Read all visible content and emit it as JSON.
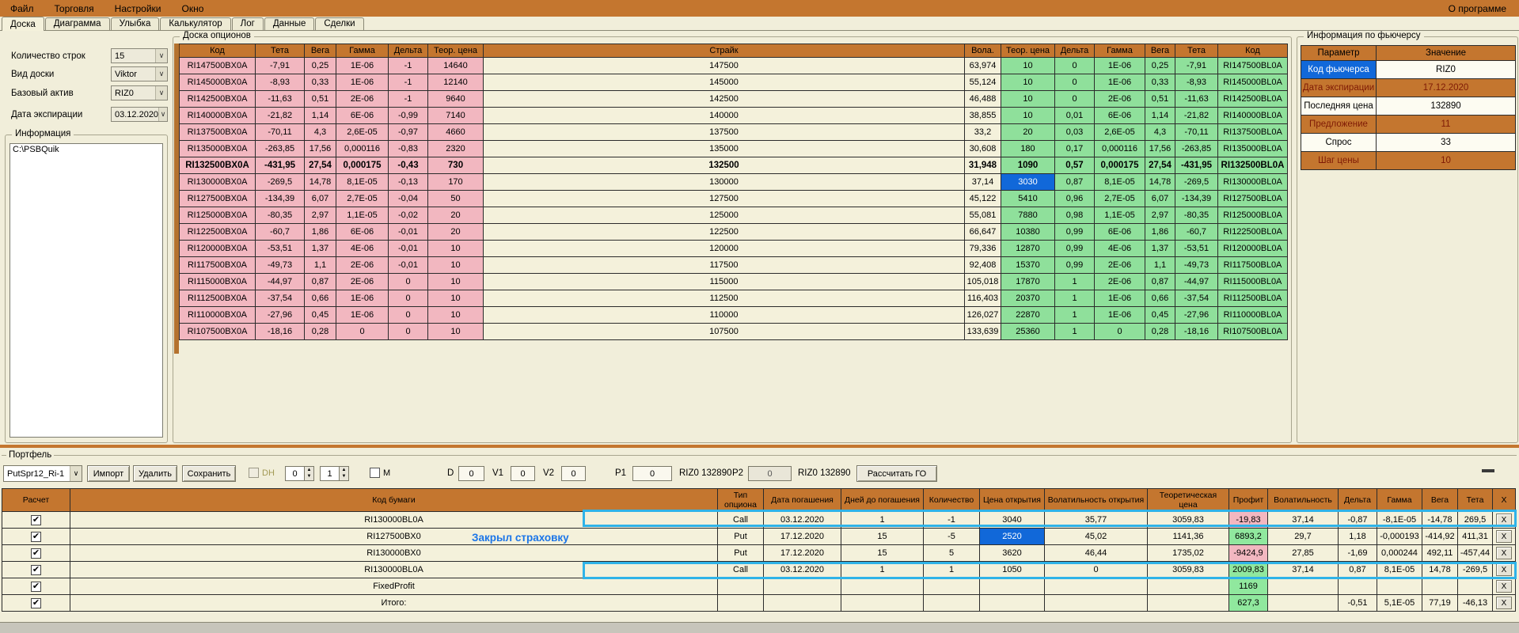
{
  "menu": {
    "items": [
      "Файл",
      "Торговля",
      "Настройки",
      "Окно"
    ],
    "right_item": "О программе"
  },
  "tabs": {
    "items": [
      "Доска",
      "Диаграмма",
      "Улыбка",
      "Калькулятор",
      "Лог",
      "Данные",
      "Сделки"
    ],
    "active": "Доска"
  },
  "left_panel": {
    "rows_count": {
      "label": "Количество строк",
      "value": "15"
    },
    "board_view": {
      "label": "Вид доски",
      "value": "Viktor"
    },
    "base_asset": {
      "label": "Базовый актив",
      "value": "RIZ0"
    },
    "expiry": {
      "label": "Дата экспирации",
      "value": "03.12.2020"
    },
    "info": {
      "label": "Информация",
      "value": "C:\\PSBQuik"
    }
  },
  "board": {
    "title": "Доска опционов",
    "headers": [
      "Код",
      "Тета",
      "Вега",
      "Гамма",
      "Дельта",
      "Теор. цена",
      "Страйк",
      "Вола.",
      "Теор. цена",
      "Дельта",
      "Гамма",
      "Вега",
      "Тета",
      "Код"
    ],
    "bold_row": 6,
    "selected_cell": {
      "row": 7,
      "col": 8
    },
    "rows": [
      [
        "RI147500BX0A",
        "-7,91",
        "0,25",
        "1E-06",
        "-1",
        "14640",
        "147500",
        "63,974",
        "10",
        "0",
        "1E-06",
        "0,25",
        "-7,91",
        "RI147500BL0A"
      ],
      [
        "RI145000BX0A",
        "-8,93",
        "0,33",
        "1E-06",
        "-1",
        "12140",
        "145000",
        "55,124",
        "10",
        "0",
        "1E-06",
        "0,33",
        "-8,93",
        "RI145000BL0A"
      ],
      [
        "RI142500BX0A",
        "-11,63",
        "0,51",
        "2E-06",
        "-1",
        "9640",
        "142500",
        "46,488",
        "10",
        "0",
        "2E-06",
        "0,51",
        "-11,63",
        "RI142500BL0A"
      ],
      [
        "RI140000BX0A",
        "-21,82",
        "1,14",
        "6E-06",
        "-0,99",
        "7140",
        "140000",
        "38,855",
        "10",
        "0,01",
        "6E-06",
        "1,14",
        "-21,82",
        "RI140000BL0A"
      ],
      [
        "RI137500BX0A",
        "-70,11",
        "4,3",
        "2,6E-05",
        "-0,97",
        "4660",
        "137500",
        "33,2",
        "20",
        "0,03",
        "2,6E-05",
        "4,3",
        "-70,11",
        "RI137500BL0A"
      ],
      [
        "RI135000BX0A",
        "-263,85",
        "17,56",
        "0,000116",
        "-0,83",
        "2320",
        "135000",
        "30,608",
        "180",
        "0,17",
        "0,000116",
        "17,56",
        "-263,85",
        "RI135000BL0A"
      ],
      [
        "RI132500BX0A",
        "-431,95",
        "27,54",
        "0,000175",
        "-0,43",
        "730",
        "132500",
        "31,948",
        "1090",
        "0,57",
        "0,000175",
        "27,54",
        "-431,95",
        "RI132500BL0A"
      ],
      [
        "RI130000BX0A",
        "-269,5",
        "14,78",
        "8,1E-05",
        "-0,13",
        "170",
        "130000",
        "37,14",
        "3030",
        "0,87",
        "8,1E-05",
        "14,78",
        "-269,5",
        "RI130000BL0A"
      ],
      [
        "RI127500BX0A",
        "-134,39",
        "6,07",
        "2,7E-05",
        "-0,04",
        "50",
        "127500",
        "45,122",
        "5410",
        "0,96",
        "2,7E-05",
        "6,07",
        "-134,39",
        "RI127500BL0A"
      ],
      [
        "RI125000BX0A",
        "-80,35",
        "2,97",
        "1,1E-05",
        "-0,02",
        "20",
        "125000",
        "55,081",
        "7880",
        "0,98",
        "1,1E-05",
        "2,97",
        "-80,35",
        "RI125000BL0A"
      ],
      [
        "RI122500BX0A",
        "-60,7",
        "1,86",
        "6E-06",
        "-0,01",
        "20",
        "122500",
        "66,647",
        "10380",
        "0,99",
        "6E-06",
        "1,86",
        "-60,7",
        "RI122500BL0A"
      ],
      [
        "RI120000BX0A",
        "-53,51",
        "1,37",
        "4E-06",
        "-0,01",
        "10",
        "120000",
        "79,336",
        "12870",
        "0,99",
        "4E-06",
        "1,37",
        "-53,51",
        "RI120000BL0A"
      ],
      [
        "RI117500BX0A",
        "-49,73",
        "1,1",
        "2E-06",
        "-0,01",
        "10",
        "117500",
        "92,408",
        "15370",
        "0,99",
        "2E-06",
        "1,1",
        "-49,73",
        "RI117500BL0A"
      ],
      [
        "RI115000BX0A",
        "-44,97",
        "0,87",
        "2E-06",
        "0",
        "10",
        "115000",
        "105,018",
        "17870",
        "1",
        "2E-06",
        "0,87",
        "-44,97",
        "RI115000BL0A"
      ],
      [
        "RI112500BX0A",
        "-37,54",
        "0,66",
        "1E-06",
        "0",
        "10",
        "112500",
        "116,403",
        "20370",
        "1",
        "1E-06",
        "0,66",
        "-37,54",
        "RI112500BL0A"
      ],
      [
        "RI110000BX0A",
        "-27,96",
        "0,45",
        "1E-06",
        "0",
        "10",
        "110000",
        "126,027",
        "22870",
        "1",
        "1E-06",
        "0,45",
        "-27,96",
        "RI110000BL0A"
      ],
      [
        "RI107500BX0A",
        "-18,16",
        "0,28",
        "0",
        "0",
        "10",
        "107500",
        "133,639",
        "25360",
        "1",
        "0",
        "0,28",
        "-18,16",
        "RI107500BL0A"
      ]
    ]
  },
  "futures_info": {
    "title": "Информация по фьючерсу",
    "headers": [
      "Параметр",
      "Значение"
    ],
    "rows": [
      {
        "param": "Код фьючерса",
        "value": "RIZ0",
        "selected": true,
        "orange": false
      },
      {
        "param": "Дата экспирации",
        "value": "17.12.2020",
        "orange": true
      },
      {
        "param": "Последняя цена",
        "value": "132890",
        "orange": false
      },
      {
        "param": "Предложение",
        "value": "11",
        "orange": true
      },
      {
        "param": "Спрос",
        "value": "33",
        "orange": false
      },
      {
        "param": "Шаг цены",
        "value": "10",
        "orange": true
      }
    ]
  },
  "portfolio": {
    "label": "Портфель",
    "toolbar": {
      "preset": "PutSpr12_Ri-1",
      "import_button": "Импорт",
      "delete_button": "Удалить",
      "save_button": "Сохранить",
      "dh_label": "DH",
      "spin_a": "0",
      "spin_b": "1",
      "m_label": "M",
      "d_label": "D",
      "d_value": "0",
      "v1_label": "V1",
      "v1_value": "0",
      "v2_label": "V2",
      "v2_value": "0",
      "p1_label": "P1",
      "p1_value": "0",
      "fut_label_1": "RIZ0 132890",
      "p2_label": "P2",
      "p2_value": "0",
      "fut_label_2": "RIZ0 132890",
      "calc_go_button": "Рассчитать ГО"
    },
    "table": {
      "headers": [
        "Расчет",
        "Код бумаги",
        "Тип опциона",
        "Дата погашения",
        "Дней до погашения",
        "Количество",
        "Цена открытия",
        "Волатильность открытия",
        "Теоретическая цена",
        "Профит",
        "Волатильность",
        "Дельта",
        "Гамма",
        "Вега",
        "Тета",
        "X"
      ],
      "delete_label": "X",
      "rows": [
        {
          "checked": true,
          "highlight": true,
          "profit": "loss",
          "cells": [
            "RI130000BL0A",
            "Call",
            "03.12.2020",
            "1",
            "-1",
            "3040",
            "35,77",
            "3059,83",
            "-19,83",
            "37,14",
            "-0,87",
            "-8,1E-05",
            "-14,78",
            "269,5"
          ]
        },
        {
          "checked": true,
          "profit": "gain",
          "selected_col": 5,
          "cells": [
            "RI127500BX0",
            "Put",
            "17.12.2020",
            "15",
            "-5",
            "2520",
            "45,02",
            "1141,36",
            "6893,2",
            "29,7",
            "1,18",
            "-0,000193",
            "-414,92",
            "411,31"
          ]
        },
        {
          "checked": true,
          "profit": "loss",
          "cells": [
            "RI130000BX0",
            "Put",
            "17.12.2020",
            "15",
            "5",
            "3620",
            "46,44",
            "1735,02",
            "-9424,9",
            "27,85",
            "-1,69",
            "0,000244",
            "492,11",
            "-457,44"
          ]
        },
        {
          "checked": true,
          "highlight": true,
          "profit": "gain",
          "cells": [
            "RI130000BL0A",
            "Call",
            "03.12.2020",
            "1",
            "1",
            "1050",
            "0",
            "3059,83",
            "2009,83",
            "37,14",
            "0,87",
            "8,1E-05",
            "14,78",
            "-269,5"
          ]
        },
        {
          "checked": true,
          "profit": "gain",
          "cells": [
            "FixedProfit",
            "",
            "",
            "",
            "",
            "",
            "",
            "",
            "1169",
            "",
            "",
            "",
            "",
            ""
          ]
        },
        {
          "checked": true,
          "profit": "gain",
          "cells": [
            "Итого:",
            "",
            "",
            "",
            "",
            "",
            "",
            "",
            "627,3",
            "",
            "-0,51",
            "5,1E-05",
            "77,19",
            "-46,13"
          ]
        }
      ]
    }
  },
  "annotation": {
    "text": "Закрыл страховку"
  },
  "colors": {
    "accent_orange": "#C4762F",
    "put_pink": "#F2B7C0",
    "call_green": "#8FE09B",
    "selection_blue": "#1168D9",
    "highlight_cyan": "#2FB3E8",
    "annotation_blue": "#1B75E8",
    "profit_green": "#90E89E",
    "loss_pink": "#F2B7C0"
  }
}
